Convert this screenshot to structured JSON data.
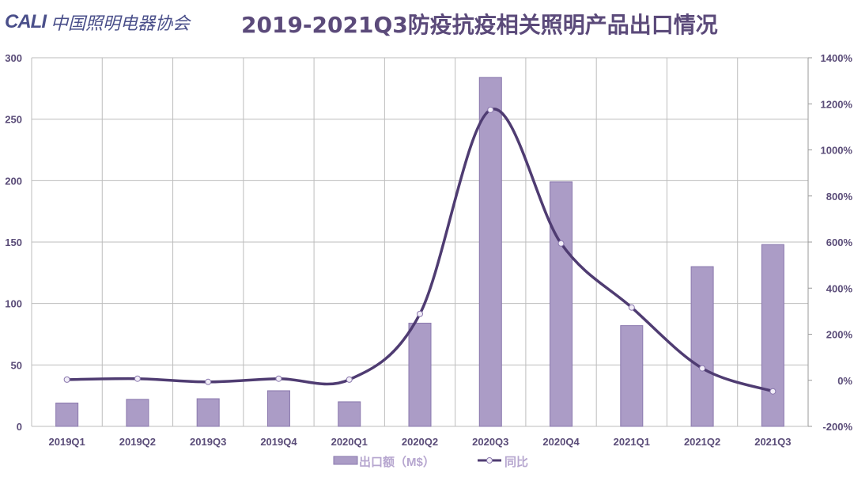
{
  "logo": {
    "mark": "CALI",
    "text": "中国照明电器协会"
  },
  "chart_data": {
    "type": "bar+line",
    "title": "2019-2021Q3防疫抗疫相关照明产品出口情况",
    "categories": [
      "2019Q1",
      "2019Q2",
      "2019Q3",
      "2019Q4",
      "2020Q1",
      "2020Q2",
      "2020Q3",
      "2020Q4",
      "2021Q1",
      "2021Q2",
      "2021Q3"
    ],
    "series": [
      {
        "name": "出口额（M$）",
        "type": "bar",
        "axis": "left",
        "color": "#ab9cc6",
        "values": [
          19,
          22,
          22.5,
          29,
          20,
          84,
          284,
          199,
          82,
          130,
          148
        ]
      },
      {
        "name": "同比",
        "type": "line",
        "axis": "right",
        "color": "#4f3c72",
        "unit": "%",
        "values": [
          3,
          7,
          -7,
          7,
          3,
          288,
          1174,
          594,
          316,
          52,
          -48
        ]
      }
    ],
    "ylim_left": [
      0,
      300
    ],
    "yticks_left": [
      "0",
      "50",
      "100",
      "150",
      "200",
      "250",
      "300"
    ],
    "ylim_right": [
      -200,
      1400
    ],
    "yticks_right": [
      "-200%",
      "0%",
      "200%",
      "400%",
      "600%",
      "800%",
      "1000%",
      "1200%",
      "1400%"
    ],
    "grid": true,
    "legend": "bottom"
  }
}
